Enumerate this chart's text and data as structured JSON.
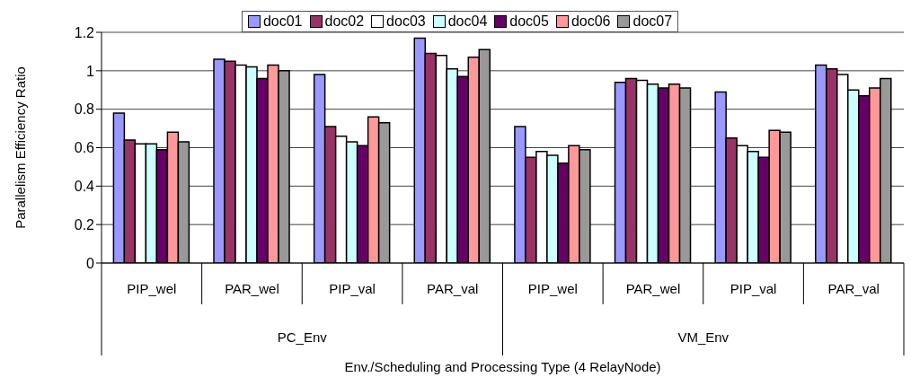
{
  "chart_data": {
    "type": "bar",
    "xlabel": "Env./Scheduling and Processing Type (4 RelayNode)",
    "ylabel": "Parallelism Efficiency Ratio",
    "categories": [
      "PIP_wel",
      "PAR_wel",
      "PIP_val",
      "PAR_val",
      "PIP_wel",
      "PAR_wel",
      "PIP_val",
      "PAR_val"
    ],
    "annotations": [
      "PC_Env",
      "VM_Env"
    ],
    "series": [
      {
        "name": "doc01",
        "color": "#9999ff",
        "values": [
          0.78,
          1.06,
          0.98,
          1.17,
          0.71,
          0.94,
          0.89,
          1.03
        ]
      },
      {
        "name": "doc02",
        "color": "#993366",
        "values": [
          0.64,
          1.05,
          0.71,
          1.09,
          0.55,
          0.96,
          0.65,
          1.01
        ]
      },
      {
        "name": "doc03",
        "color": "#ffffff",
        "values": [
          0.62,
          1.03,
          0.66,
          1.08,
          0.58,
          0.95,
          0.61,
          0.98
        ]
      },
      {
        "name": "doc04",
        "color": "#ccffff",
        "values": [
          0.62,
          1.02,
          0.63,
          1.01,
          0.56,
          0.93,
          0.58,
          0.9
        ]
      },
      {
        "name": "doc05",
        "color": "#660066",
        "values": [
          0.59,
          0.96,
          0.61,
          0.97,
          0.52,
          0.91,
          0.55,
          0.87
        ]
      },
      {
        "name": "doc06",
        "color": "#ff9999",
        "values": [
          0.68,
          1.03,
          0.76,
          1.07,
          0.61,
          0.93,
          0.69,
          0.91
        ]
      },
      {
        "name": "doc07",
        "color": "#999999",
        "values": [
          0.63,
          1.0,
          0.73,
          1.11,
          0.59,
          0.91,
          0.68,
          0.96
        ]
      }
    ],
    "ylim": [
      0,
      1.2
    ],
    "yticks": [
      0,
      0.2,
      0.4,
      0.6,
      0.8,
      1,
      1.2
    ],
    "grid": "y",
    "legend": "top"
  }
}
